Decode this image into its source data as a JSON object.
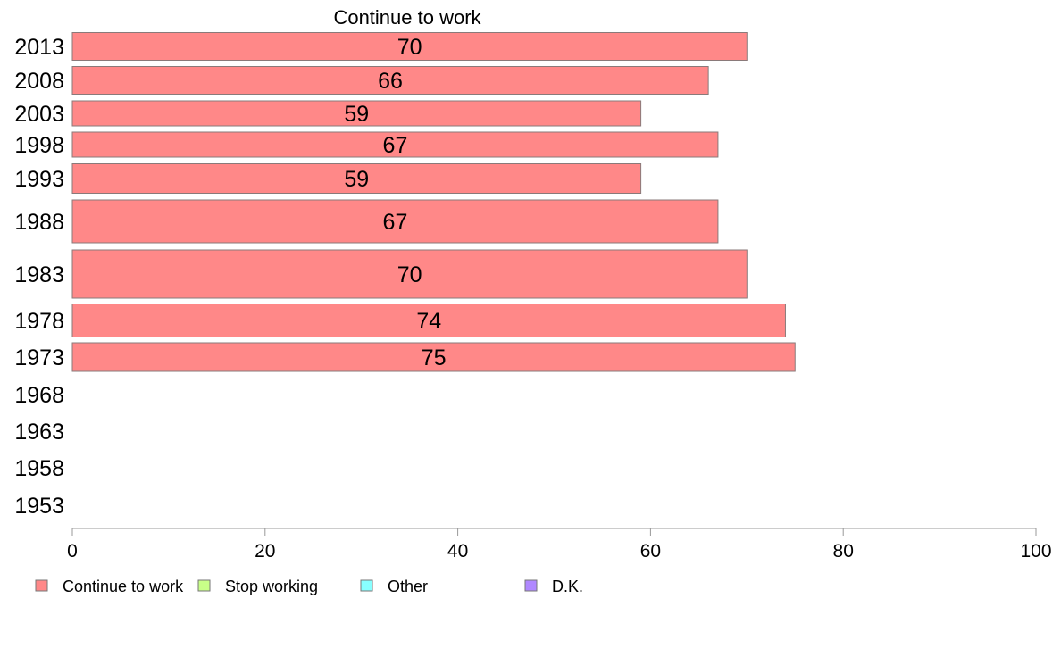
{
  "chart_data": {
    "type": "bar",
    "orientation": "horizontal",
    "title": "Continue to work",
    "categories": [
      "2013",
      "2008",
      "2003",
      "1998",
      "1993",
      "1988",
      "1983",
      "1978",
      "1973",
      "1968",
      "1963",
      "1958",
      "1953"
    ],
    "series": [
      {
        "name": "Continue to work",
        "values": [
          70,
          66,
          59,
          67,
          59,
          67,
          70,
          74,
          75,
          null,
          null,
          null,
          null
        ],
        "color": "#ff8888"
      }
    ],
    "xlim": [
      0,
      100
    ],
    "xticks": [
      0,
      20,
      40,
      60,
      80,
      100
    ],
    "xlabel": "",
    "ylabel": "",
    "grid": false,
    "legend": {
      "placement": "bottom-left",
      "entries": [
        {
          "label": "Continue to work",
          "color": "#ff8888"
        },
        {
          "label": "Stop working",
          "color": "#c8ff88"
        },
        {
          "label": "Other",
          "color": "#88ffff"
        },
        {
          "label": "D.K.",
          "color": "#b088ff"
        }
      ]
    }
  }
}
